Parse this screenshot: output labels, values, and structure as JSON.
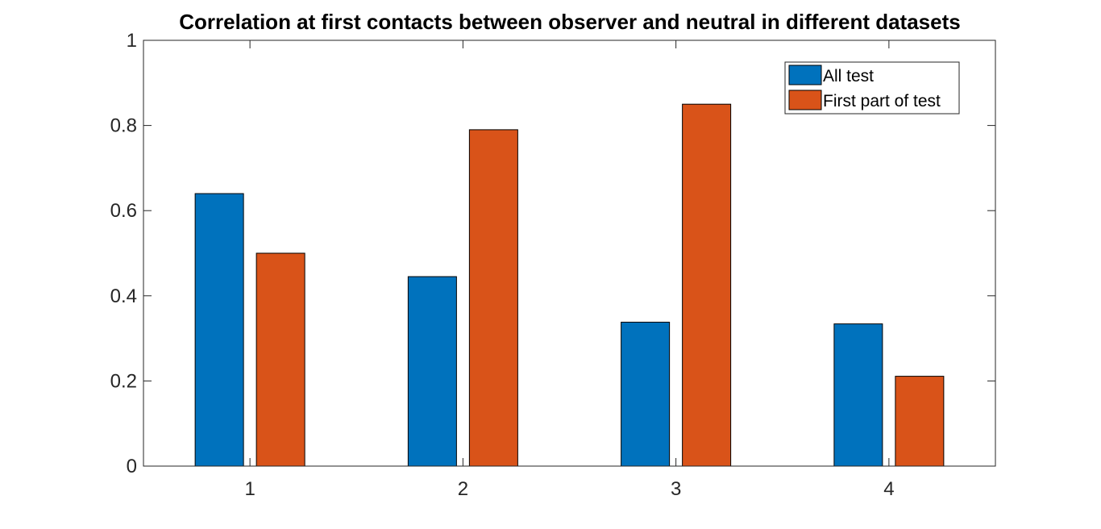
{
  "chart_data": {
    "type": "bar",
    "title": "Correlation at first contacts between observer and neutral in different datasets",
    "xlabel": "",
    "ylabel": "",
    "categories": [
      "1",
      "2",
      "3",
      "4"
    ],
    "ylim": [
      0,
      1
    ],
    "yticks": [
      "0",
      "0.2",
      "0.4",
      "0.6",
      "0.8",
      "1"
    ],
    "series": [
      {
        "name": "All test",
        "color": "#0072BD",
        "values": [
          0.64,
          0.445,
          0.338,
          0.334
        ]
      },
      {
        "name": "First part of test",
        "color": "#D95319",
        "values": [
          0.5,
          0.79,
          0.85,
          0.211
        ]
      }
    ],
    "legend": {
      "position": "top-right"
    },
    "grid": false
  }
}
